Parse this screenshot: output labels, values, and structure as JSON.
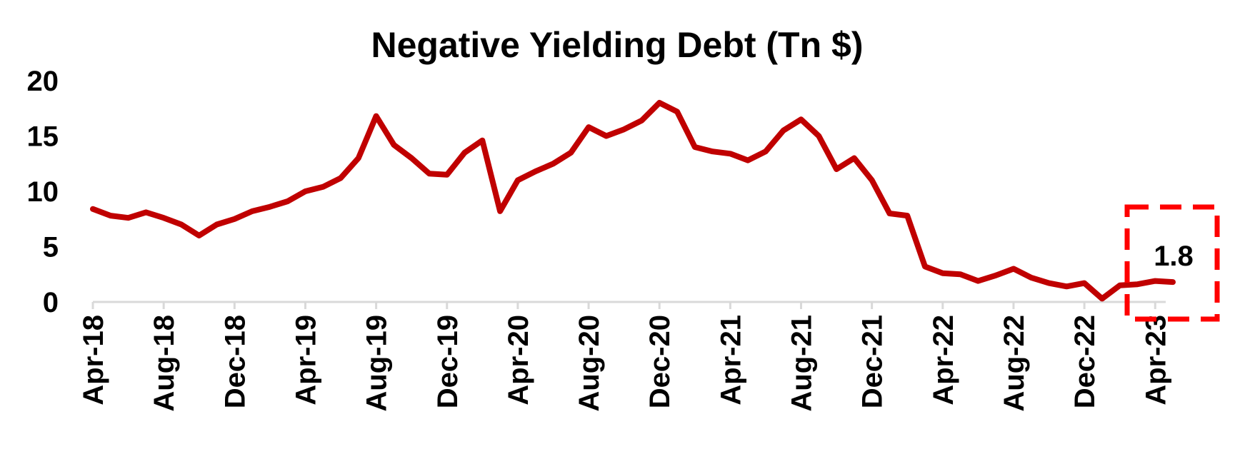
{
  "chart_data": {
    "type": "line",
    "title": "Negative Yielding Debt (Tn $)",
    "xlabel": "",
    "ylabel": "",
    "ylim": [
      0,
      20
    ],
    "yticks": [
      "0",
      "5",
      "10",
      "15",
      "20"
    ],
    "xticks": [
      "Apr-18",
      "Aug-18",
      "Dec-18",
      "Apr-19",
      "Aug-19",
      "Dec-19",
      "Apr-20",
      "Aug-20",
      "Dec-20",
      "Apr-21",
      "Aug-21",
      "Dec-21",
      "Apr-22",
      "Aug-22",
      "Dec-22",
      "Apr-23"
    ],
    "grid": false,
    "legend": "none",
    "line_color": "#C00000",
    "series": [
      {
        "x": [
          "Apr-18",
          "May-18",
          "Jun-18",
          "Jul-18",
          "Aug-18",
          "Sep-18",
          "Oct-18",
          "Nov-18",
          "Dec-18",
          "Jan-19",
          "Feb-19",
          "Mar-19",
          "Apr-19",
          "May-19",
          "Jun-19",
          "Jul-19",
          "Aug-19",
          "Sep-19",
          "Oct-19",
          "Nov-19",
          "Dec-19",
          "Jan-20",
          "Feb-20",
          "Mar-20",
          "Apr-20",
          "May-20",
          "Jun-20",
          "Jul-20",
          "Aug-20",
          "Sep-20",
          "Oct-20",
          "Nov-20",
          "Dec-20",
          "Jan-21",
          "Feb-21",
          "Mar-21",
          "Apr-21",
          "May-21",
          "Jun-21",
          "Jul-21",
          "Aug-21",
          "Sep-21",
          "Oct-21",
          "Nov-21",
          "Dec-21",
          "Jan-22",
          "Feb-22",
          "Mar-22",
          "Apr-22",
          "May-22",
          "Jun-22",
          "Jul-22",
          "Aug-22",
          "Sep-22",
          "Oct-22",
          "Nov-22",
          "Dec-22",
          "Jan-23",
          "Feb-23",
          "Mar-23",
          "Apr-23",
          "May-23"
        ],
        "values": [
          8.4,
          7.8,
          7.6,
          8.1,
          7.6,
          7.0,
          6.0,
          7.0,
          7.5,
          8.2,
          8.6,
          9.1,
          10.0,
          10.4,
          11.2,
          13.0,
          16.8,
          14.2,
          13.0,
          11.6,
          11.5,
          13.5,
          14.6,
          8.2,
          11.0,
          11.8,
          12.5,
          13.5,
          15.8,
          15.0,
          15.6,
          16.4,
          18.0,
          17.2,
          14.0,
          13.6,
          13.4,
          12.8,
          13.6,
          15.5,
          16.5,
          15.0,
          12.0,
          13.0,
          11.0,
          8.0,
          7.8,
          3.2,
          2.6,
          2.5,
          1.9,
          2.4,
          3.0,
          2.2,
          1.7,
          1.4,
          1.7,
          0.3,
          1.5,
          1.6,
          1.9,
          1.8
        ]
      }
    ],
    "annotation": {
      "label": "1.8",
      "box_color": "#FF0000"
    }
  }
}
